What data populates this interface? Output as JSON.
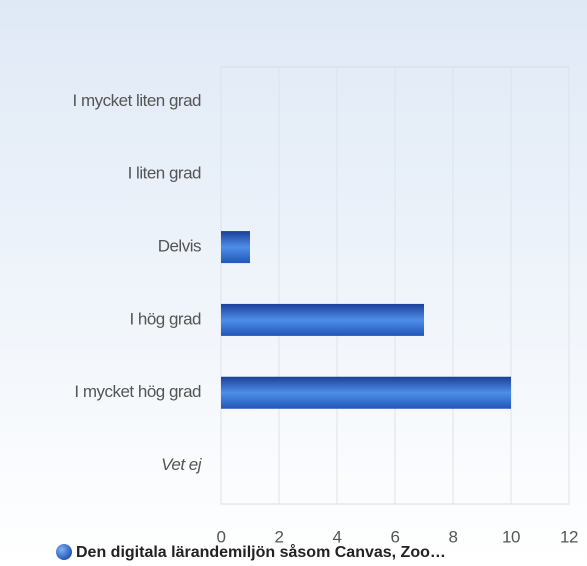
{
  "chart_data": {
    "type": "bar",
    "orientation": "horizontal",
    "categories": [
      "I mycket liten grad",
      "I liten grad",
      "Delvis",
      "I hög grad",
      "I mycket hög grad",
      "Vet ej"
    ],
    "series": [
      {
        "name": "Den digitala lärandemiljön såsom Canvas, Zoo…",
        "color": "#2a5fc4",
        "values": [
          0,
          0,
          1,
          7,
          10,
          0
        ]
      }
    ],
    "xlim": [
      0,
      12
    ],
    "xticks": [
      0,
      2,
      4,
      6,
      8,
      10,
      12
    ],
    "grid": true,
    "legend": "bottom"
  }
}
